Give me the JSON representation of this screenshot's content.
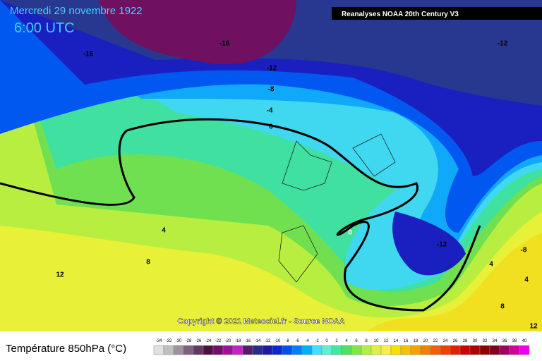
{
  "header": {
    "title": "Mercredi 29 novembre 1922",
    "time": "6:00 UTC",
    "source": "Reanalyses NOAA 20th Century V3"
  },
  "contour_labels": [
    "-16",
    "-16",
    "-12",
    "-12",
    "-8",
    "-4",
    "0",
    "0",
    "4",
    "8",
    "12",
    "-12",
    "-8",
    "4",
    "4",
    "8",
    "12"
  ],
  "copyright": "Copyright © 2021 Meteociel.fr - Source NOAA",
  "legend": {
    "title": "Température 850hPa (°C)",
    "values": [
      -34,
      -32,
      -30,
      -28,
      -26,
      -24,
      -22,
      -20,
      -18,
      -16,
      -14,
      -12,
      -10,
      -8,
      -6,
      -4,
      -2,
      0,
      2,
      4,
      6,
      8,
      10,
      12,
      14,
      16,
      18,
      20,
      22,
      24,
      26,
      28,
      30,
      32,
      34,
      36,
      38,
      40
    ],
    "colors": [
      "#e0e0e0",
      "#c0c0c0",
      "#a090a0",
      "#806080",
      "#603860",
      "#4c1040",
      "#7a0a6a",
      "#a0109a",
      "#c820c8",
      "#5a1a6a",
      "#2a2a8a",
      "#1a1aa8",
      "#0a2ad0",
      "#0050f0",
      "#0080ff",
      "#00b0ff",
      "#40e0ff",
      "#60f0d0",
      "#40e8a0",
      "#50e060",
      "#80e840",
      "#b0f040",
      "#e0f040",
      "#f8f040",
      "#f8e000",
      "#f8c000",
      "#f8a000",
      "#f08000",
      "#f06000",
      "#f04000",
      "#e02000",
      "#d00000",
      "#b00000",
      "#900000",
      "#800020",
      "#a00060",
      "#d000a0",
      "#f000f0"
    ]
  }
}
